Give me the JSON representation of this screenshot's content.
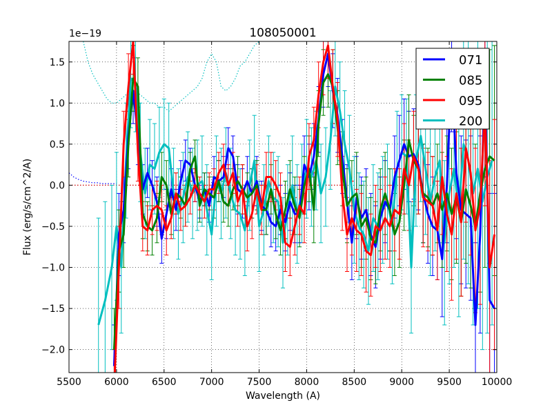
{
  "chart_data": {
    "type": "line",
    "title": "108050001",
    "xlabel": "Wavelength (A)",
    "ylabel": "Flux (erg/s/cm^2/A)",
    "offset_label": "1e−19",
    "xlim": [
      5500,
      10000
    ],
    "ylim": [
      -2.28,
      1.75
    ],
    "xticks": [
      5500,
      6000,
      6500,
      7000,
      7500,
      8000,
      8500,
      9000,
      9500,
      10000
    ],
    "xtick_labels": [
      "5500",
      "6000",
      "6500",
      "7000",
      "7500",
      "8000",
      "8500",
      "9000",
      "9500",
      "10000"
    ],
    "yticks": [
      -2.0,
      -1.5,
      -1.0,
      -0.5,
      0.0,
      0.5,
      1.0,
      1.5
    ],
    "ytick_labels": [
      "−2.0",
      "−1.5",
      "−1.0",
      "−0.5",
      "0.0",
      "0.5",
      "1.0",
      "1.5"
    ],
    "grid": true,
    "legend_position": "top-right",
    "series": [
      {
        "name": "071",
        "color": "#0000ff",
        "x": [
          5975,
          6025,
          6075,
          6125,
          6175,
          6225,
          6275,
          6325,
          6375,
          6425,
          6475,
          6525,
          6575,
          6625,
          6675,
          6725,
          6775,
          6825,
          6875,
          6925,
          6975,
          7025,
          7075,
          7125,
          7175,
          7225,
          7275,
          7325,
          7375,
          7425,
          7475,
          7525,
          7575,
          7625,
          7675,
          7725,
          7775,
          7825,
          7875,
          7925,
          7975,
          8025,
          8075,
          8125,
          8175,
          8225,
          8275,
          8325,
          8375,
          8425,
          8475,
          8525,
          8575,
          8625,
          8675,
          8725,
          8775,
          8825,
          8875,
          8925,
          8975,
          9025,
          9075,
          9125,
          9175,
          9225,
          9275,
          9325,
          9375,
          9425,
          9475,
          9525,
          9575,
          9625,
          9675,
          9725,
          9775,
          9825,
          9875,
          9925,
          9975
        ],
        "y": [
          -2.2,
          -0.6,
          -0.3,
          0.6,
          1.15,
          0.6,
          -0.05,
          0.15,
          0.0,
          -0.2,
          -0.65,
          -0.35,
          -0.05,
          -0.3,
          0.05,
          0.3,
          0.25,
          0.0,
          -0.2,
          -0.05,
          -0.25,
          0.1,
          0.05,
          0.1,
          0.45,
          0.35,
          -0.05,
          -0.1,
          0.05,
          -0.1,
          0.05,
          -0.25,
          -0.3,
          -0.45,
          -0.5,
          -0.3,
          -0.45,
          -0.2,
          -0.35,
          -0.35,
          0.25,
          0.1,
          0.35,
          0.8,
          1.35,
          1.6,
          1.15,
          0.85,
          0.35,
          -0.2,
          -0.7,
          -0.15,
          -0.4,
          -0.3,
          -0.6,
          -0.75,
          -0.4,
          -0.2,
          -0.3,
          0.1,
          0.3,
          0.5,
          0.35,
          0.38,
          0.25,
          -0.1,
          -0.35,
          -0.5,
          -0.55,
          -0.9,
          0.0,
          1.45,
          0.15,
          -0.3,
          -0.35,
          -0.4,
          -1.7,
          -0.6,
          1.3,
          -1.4,
          -1.5
        ],
        "errors": [
          0.5,
          0.5,
          0.4,
          0.4,
          0.4,
          0.35,
          0.3,
          0.3,
          0.3,
          0.3,
          0.3,
          0.3,
          0.25,
          0.25,
          0.25,
          0.25,
          0.2,
          0.2,
          0.2,
          0.2,
          0.2,
          0.25,
          0.25,
          0.25,
          0.25,
          0.25,
          0.3,
          0.3,
          0.3,
          0.3,
          0.3,
          0.3,
          0.3,
          0.3,
          0.3,
          0.3,
          0.35,
          0.35,
          0.35,
          0.35,
          0.35,
          0.4,
          0.4,
          0.4,
          0.4,
          0.4,
          0.45,
          0.45,
          0.45,
          0.45,
          0.45,
          0.5,
          0.5,
          0.5,
          0.5,
          0.5,
          0.5,
          0.5,
          0.5,
          0.5,
          0.55,
          0.55,
          0.55,
          0.55,
          0.55,
          0.6,
          0.6,
          0.6,
          0.6,
          0.7,
          0.7,
          0.8,
          0.8,
          0.9,
          0.9,
          1.0,
          1.0,
          1.2,
          1.2,
          1.3,
          1.4
        ]
      },
      {
        "name": "085",
        "color": "#008000",
        "x": [
          5975,
          6025,
          6075,
          6125,
          6175,
          6225,
          6275,
          6325,
          6375,
          6425,
          6475,
          6525,
          6575,
          6625,
          6675,
          6725,
          6775,
          6825,
          6875,
          6925,
          6975,
          7025,
          7075,
          7125,
          7175,
          7225,
          7275,
          7325,
          7375,
          7425,
          7475,
          7525,
          7575,
          7625,
          7675,
          7725,
          7775,
          7825,
          7875,
          7925,
          7975,
          8025,
          8075,
          8125,
          8175,
          8225,
          8275,
          8325,
          8375,
          8425,
          8475,
          8525,
          8575,
          8625,
          8675,
          8725,
          8775,
          8825,
          8875,
          8925,
          8975,
          9025,
          9075,
          9125,
          9175,
          9225,
          9275,
          9325,
          9375,
          9425,
          9475,
          9525,
          9575,
          9625,
          9675,
          9725,
          9775,
          9825,
          9875,
          9925,
          9975
        ],
        "y": [
          -2.0,
          -0.8,
          -0.6,
          0.5,
          1.3,
          1.2,
          -0.35,
          -0.5,
          -0.55,
          -0.4,
          0.1,
          0.0,
          -0.35,
          -0.1,
          -0.15,
          -0.25,
          0.2,
          0.35,
          -0.25,
          -0.05,
          -0.1,
          -0.15,
          0.05,
          -0.2,
          -0.25,
          -0.05,
          0.05,
          -0.05,
          -0.15,
          -0.1,
          0.0,
          -0.3,
          -0.3,
          -0.05,
          -0.35,
          -0.55,
          -0.3,
          -0.05,
          -0.25,
          -0.4,
          0.0,
          0.2,
          -0.3,
          0.75,
          1.25,
          1.35,
          1.2,
          0.7,
          0.2,
          -0.25,
          -0.15,
          -0.1,
          -0.5,
          -0.4,
          -0.65,
          -0.7,
          -0.3,
          -0.1,
          -0.3,
          -0.6,
          -0.45,
          0.0,
          0.55,
          0.3,
          0.2,
          -0.1,
          -0.15,
          -0.25,
          -0.1,
          -0.3,
          -0.1,
          -0.35,
          -0.15,
          -0.45,
          -0.05,
          -0.25,
          -0.5,
          -0.1,
          0.2,
          0.35,
          0.3
        ],
        "errors": [
          0.5,
          0.5,
          0.4,
          0.4,
          0.4,
          0.35,
          0.3,
          0.3,
          0.3,
          0.3,
          0.3,
          0.3,
          0.25,
          0.25,
          0.25,
          0.25,
          0.2,
          0.2,
          0.2,
          0.2,
          0.2,
          0.25,
          0.25,
          0.25,
          0.25,
          0.25,
          0.3,
          0.3,
          0.3,
          0.3,
          0.3,
          0.3,
          0.3,
          0.3,
          0.3,
          0.3,
          0.35,
          0.35,
          0.35,
          0.35,
          0.35,
          0.4,
          0.4,
          0.4,
          0.4,
          0.4,
          0.45,
          0.45,
          0.45,
          0.45,
          0.45,
          0.5,
          0.5,
          0.5,
          0.5,
          0.5,
          0.5,
          0.5,
          0.5,
          0.5,
          0.55,
          0.55,
          0.55,
          0.55,
          0.55,
          0.6,
          0.6,
          0.6,
          0.6,
          0.7,
          0.7,
          0.8,
          0.8,
          0.9,
          0.9,
          1.0,
          1.0,
          1.2,
          1.2,
          1.3,
          1.4
        ]
      },
      {
        "name": "095",
        "color": "#ff0000",
        "x": [
          5975,
          6025,
          6075,
          6125,
          6175,
          6225,
          6275,
          6325,
          6375,
          6425,
          6475,
          6525,
          6575,
          6625,
          6675,
          6725,
          6775,
          6825,
          6875,
          6925,
          6975,
          7025,
          7075,
          7125,
          7175,
          7225,
          7275,
          7325,
          7375,
          7425,
          7475,
          7525,
          7575,
          7625,
          7675,
          7725,
          7775,
          7825,
          7875,
          7925,
          7975,
          8025,
          8075,
          8125,
          8175,
          8225,
          8275,
          8325,
          8375,
          8425,
          8475,
          8525,
          8575,
          8625,
          8675,
          8725,
          8775,
          8825,
          8875,
          8925,
          8975,
          9025,
          9075,
          9125,
          9175,
          9225,
          9275,
          9325,
          9375,
          9425,
          9475,
          9525,
          9575,
          9625,
          9675,
          9725,
          9775,
          9825,
          9875,
          9925,
          9975
        ],
        "y": [
          -2.5,
          -1.0,
          0.5,
          1.2,
          1.75,
          0.4,
          -0.5,
          -0.55,
          -0.3,
          -0.25,
          -0.3,
          -0.55,
          -0.4,
          -0.1,
          -0.3,
          -0.25,
          -0.15,
          0.0,
          -0.1,
          -0.2,
          -0.05,
          -0.05,
          0.15,
          0.25,
          0.0,
          0.15,
          -0.2,
          -0.05,
          -0.5,
          -0.35,
          -0.05,
          -0.3,
          0.1,
          0.1,
          0.0,
          -0.15,
          -0.7,
          -0.75,
          -0.5,
          -0.25,
          -0.35,
          0.35,
          0.55,
          1.1,
          1.5,
          1.7,
          1.2,
          0.8,
          -0.1,
          -0.6,
          -0.4,
          -0.55,
          -0.6,
          -0.8,
          -0.85,
          -0.5,
          -0.55,
          -0.4,
          -0.5,
          -0.3,
          -0.35,
          0.2,
          0.0,
          0.35,
          0.2,
          -0.15,
          -0.2,
          -0.25,
          -0.55,
          0.1,
          -0.35,
          -0.6,
          -0.1,
          -0.45,
          0.45,
          0.15,
          -0.55,
          -0.25,
          0.95,
          -1.0,
          -0.6
        ],
        "errors": [
          0.5,
          0.5,
          0.4,
          0.4,
          0.4,
          0.35,
          0.3,
          0.3,
          0.3,
          0.3,
          0.3,
          0.3,
          0.25,
          0.25,
          0.25,
          0.25,
          0.2,
          0.2,
          0.2,
          0.2,
          0.2,
          0.25,
          0.25,
          0.25,
          0.25,
          0.25,
          0.3,
          0.3,
          0.3,
          0.3,
          0.3,
          0.3,
          0.3,
          0.3,
          0.3,
          0.3,
          0.35,
          0.35,
          0.35,
          0.35,
          0.35,
          0.4,
          0.4,
          0.4,
          0.4,
          0.4,
          0.45,
          0.45,
          0.45,
          0.45,
          0.45,
          0.5,
          0.5,
          0.5,
          0.5,
          0.5,
          0.5,
          0.5,
          0.5,
          0.5,
          0.55,
          0.55,
          0.55,
          0.55,
          0.55,
          0.6,
          0.6,
          0.6,
          0.6,
          0.7,
          0.7,
          0.8,
          0.8,
          0.9,
          0.9,
          1.0,
          1.0,
          1.2,
          1.2,
          1.3,
          1.4
        ]
      },
      {
        "name": "200",
        "color": "#00bfbf",
        "x": [
          5810,
          5880,
          5950,
          6000,
          6050,
          6100,
          6150,
          6200,
          6250,
          6300,
          6350,
          6400,
          6450,
          6500,
          6550,
          6600,
          6650,
          6700,
          6750,
          6800,
          6850,
          6900,
          6950,
          7000,
          7050,
          7100,
          7150,
          7200,
          7250,
          7300,
          7350,
          7400,
          7450,
          7500,
          7550,
          7600,
          7650,
          7700,
          7750,
          7800,
          7850,
          7900,
          7950,
          8000,
          8050,
          8100,
          8150,
          8200,
          8250,
          8300,
          8350,
          8400,
          8450,
          8500,
          8550,
          8600,
          8650,
          8700,
          8750,
          8800,
          8850,
          8900,
          8950,
          9000,
          9050,
          9100,
          9150,
          9200,
          9250,
          9300,
          9350,
          9400,
          9450,
          9500,
          9550,
          9600,
          9650,
          9700,
          9750,
          9800,
          9850,
          9900,
          9950
        ],
        "y": [
          -1.7,
          -1.4,
          -1.0,
          -0.5,
          -1.0,
          0.3,
          1.3,
          1.25,
          0.4,
          -0.1,
          0.25,
          0.2,
          0.4,
          0.5,
          0.45,
          -0.1,
          -0.35,
          -0.15,
          0.1,
          -0.1,
          0.0,
          0.05,
          -0.3,
          -0.6,
          0.05,
          -0.1,
          0.15,
          -0.1,
          -0.3,
          -0.35,
          -0.55,
          0.0,
          0.3,
          -0.5,
          -0.3,
          0.05,
          -0.15,
          -0.2,
          -0.7,
          -0.3,
          0.0,
          -0.35,
          -0.1,
          0.2,
          0.1,
          0.3,
          -0.1,
          0.1,
          0.55,
          1.2,
          0.9,
          0.5,
          0.2,
          -0.3,
          -0.5,
          -0.6,
          -0.8,
          -0.4,
          -0.5,
          -0.3,
          -0.2,
          -0.5,
          0.2,
          0.4,
          0.35,
          -1.0,
          0.3,
          0.6,
          0.2,
          -0.2,
          0.1,
          0.3,
          -0.7,
          -0.1,
          0.2,
          -0.3,
          0.5,
          0.3,
          -0.1,
          0.2,
          -0.2,
          0.1,
          0.3
        ],
        "errors": [
          1.3,
          1.2,
          1.0,
          0.9,
          0.8,
          0.7,
          0.6,
          0.6,
          0.6,
          0.55,
          0.55,
          0.55,
          0.55,
          0.55,
          0.55,
          0.55,
          0.55,
          0.55,
          0.55,
          0.55,
          0.55,
          0.55,
          0.55,
          0.55,
          0.55,
          0.55,
          0.55,
          0.55,
          0.55,
          0.55,
          0.55,
          0.55,
          0.55,
          0.55,
          0.55,
          0.55,
          0.55,
          0.55,
          0.55,
          0.55,
          0.6,
          0.6,
          0.6,
          0.6,
          0.6,
          0.6,
          0.6,
          0.6,
          0.6,
          0.6,
          0.6,
          0.65,
          0.65,
          0.65,
          0.65,
          0.65,
          0.65,
          0.65,
          0.65,
          0.65,
          0.7,
          0.7,
          0.7,
          0.7,
          0.7,
          0.8,
          0.8,
          0.8,
          0.8,
          0.9,
          0.9,
          1.0,
          1.0,
          1.1,
          1.2,
          1.3,
          1.4,
          1.5,
          1.6,
          1.7,
          1.8,
          1.9,
          2.0
        ]
      }
    ],
    "dotted_series": [
      {
        "name": "cyan-dotted",
        "color": "#00bfbf",
        "x": [
          5650,
          5700,
          5750,
          5800,
          5850,
          5900,
          5950,
          6000,
          6050,
          6100,
          6150,
          6200,
          6250,
          6300,
          6350,
          6400,
          6450,
          6500,
          6550,
          6600,
          6650,
          6700,
          6750,
          6800,
          6850,
          6900,
          6950,
          7000,
          7050,
          7100,
          7150,
          7200,
          7250,
          7300,
          7350,
          7400,
          7450,
          7500
        ],
        "y": [
          1.75,
          1.5,
          1.35,
          1.25,
          1.15,
          1.05,
          1.0,
          1.0,
          1.05,
          1.1,
          1.1,
          1.15,
          1.1,
          1.05,
          1.0,
          1.0,
          0.95,
          0.95,
          0.9,
          0.95,
          1.0,
          1.05,
          1.1,
          1.15,
          1.2,
          1.3,
          1.5,
          1.6,
          1.5,
          1.2,
          1.15,
          1.2,
          1.3,
          1.45,
          1.5,
          1.6,
          1.7,
          1.75
        ]
      },
      {
        "name": "blue-dotted",
        "color": "#0000ff",
        "x": [
          5500,
          5550,
          5600,
          5650,
          5700,
          5750,
          5800,
          5850,
          5900,
          5950,
          6000
        ],
        "y": [
          0.15,
          0.1,
          0.07,
          0.05,
          0.04,
          0.03,
          0.03,
          0.02,
          0.02,
          0.02,
          0.02
        ]
      },
      {
        "name": "red-dotted",
        "color": "#cc0000",
        "x": [
          5500,
          8400
        ],
        "y": [
          0.0,
          0.0
        ]
      }
    ]
  }
}
